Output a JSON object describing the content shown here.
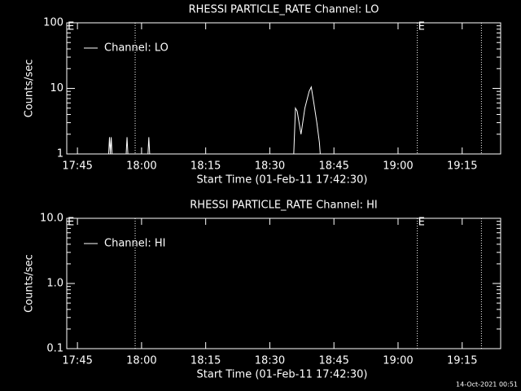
{
  "chart_data": [
    {
      "type": "line",
      "title": "RHESSI PARTICLE_RATE Channel: LO",
      "xlabel": "Start Time (01-Feb-11 17:42:30)",
      "ylabel": "Counts/sec",
      "log_y": true,
      "ylim": [
        1,
        100
      ],
      "yticks": [
        1,
        10,
        100
      ],
      "xlim": [
        1062.5,
        1164
      ],
      "xticks": [
        {
          "value": 1065,
          "label": "17:45"
        },
        {
          "value": 1080,
          "label": "18:00"
        },
        {
          "value": 1095,
          "label": "18:15"
        },
        {
          "value": 1110,
          "label": "18:30"
        },
        {
          "value": 1125,
          "label": "18:45"
        },
        {
          "value": 1140,
          "label": "19:00"
        },
        {
          "value": 1155,
          "label": "19:15"
        }
      ],
      "vlines": [
        1078.5,
        1144.5,
        1159.5
      ],
      "annotations": [
        {
          "text": "E",
          "x": 1062.5
        },
        {
          "text": "E",
          "x": 1144.5
        }
      ],
      "x": [
        1064.8,
        1072.3,
        1072.5,
        1072.7,
        1072.9,
        1073.1,
        1076.4,
        1076.6,
        1076.8,
        1081.5,
        1081.7,
        1081.9,
        1115.6,
        1116,
        1116.4,
        1117.3,
        1118.2,
        1119.2,
        1119.7,
        1120.3,
        1121,
        1121.6,
        1121.8
      ],
      "series": [
        {
          "name": "Channel: LO",
          "color": "#ffffff",
          "values": [
            1,
            1,
            1.8,
            1,
            1.8,
            1,
            1,
            1.8,
            1,
            1,
            1.8,
            1,
            1,
            5,
            4.5,
            2,
            5,
            9,
            10.5,
            6,
            3,
            1.5,
            1
          ]
        }
      ]
    },
    {
      "type": "line",
      "title": "RHESSI PARTICLE_RATE Channel: HI",
      "xlabel": "Start Time (01-Feb-11 17:42:30)",
      "ylabel": "Counts/sec",
      "log_y": true,
      "ylim": [
        0.1,
        10
      ],
      "yticks": [
        {
          "value": 0.1,
          "label": "0.1"
        },
        {
          "value": 1,
          "label": "1.0"
        },
        {
          "value": 10,
          "label": "10.0"
        }
      ],
      "xlim": [
        1062.5,
        1164
      ],
      "xticks": [
        {
          "value": 1065,
          "label": "17:45"
        },
        {
          "value": 1080,
          "label": "18:00"
        },
        {
          "value": 1095,
          "label": "18:15"
        },
        {
          "value": 1110,
          "label": "18:30"
        },
        {
          "value": 1125,
          "label": "18:45"
        },
        {
          "value": 1140,
          "label": "19:00"
        },
        {
          "value": 1155,
          "label": "19:15"
        }
      ],
      "vlines": [
        1078.5,
        1144.5,
        1159.5
      ],
      "annotations": [
        {
          "text": "E",
          "x": 1062.5
        },
        {
          "text": "E",
          "x": 1144.5
        }
      ],
      "x": [],
      "series": [
        {
          "name": "Channel: HI",
          "color": "#ffffff",
          "values": []
        }
      ]
    }
  ],
  "footer": "14-Oct-2021 00:51"
}
